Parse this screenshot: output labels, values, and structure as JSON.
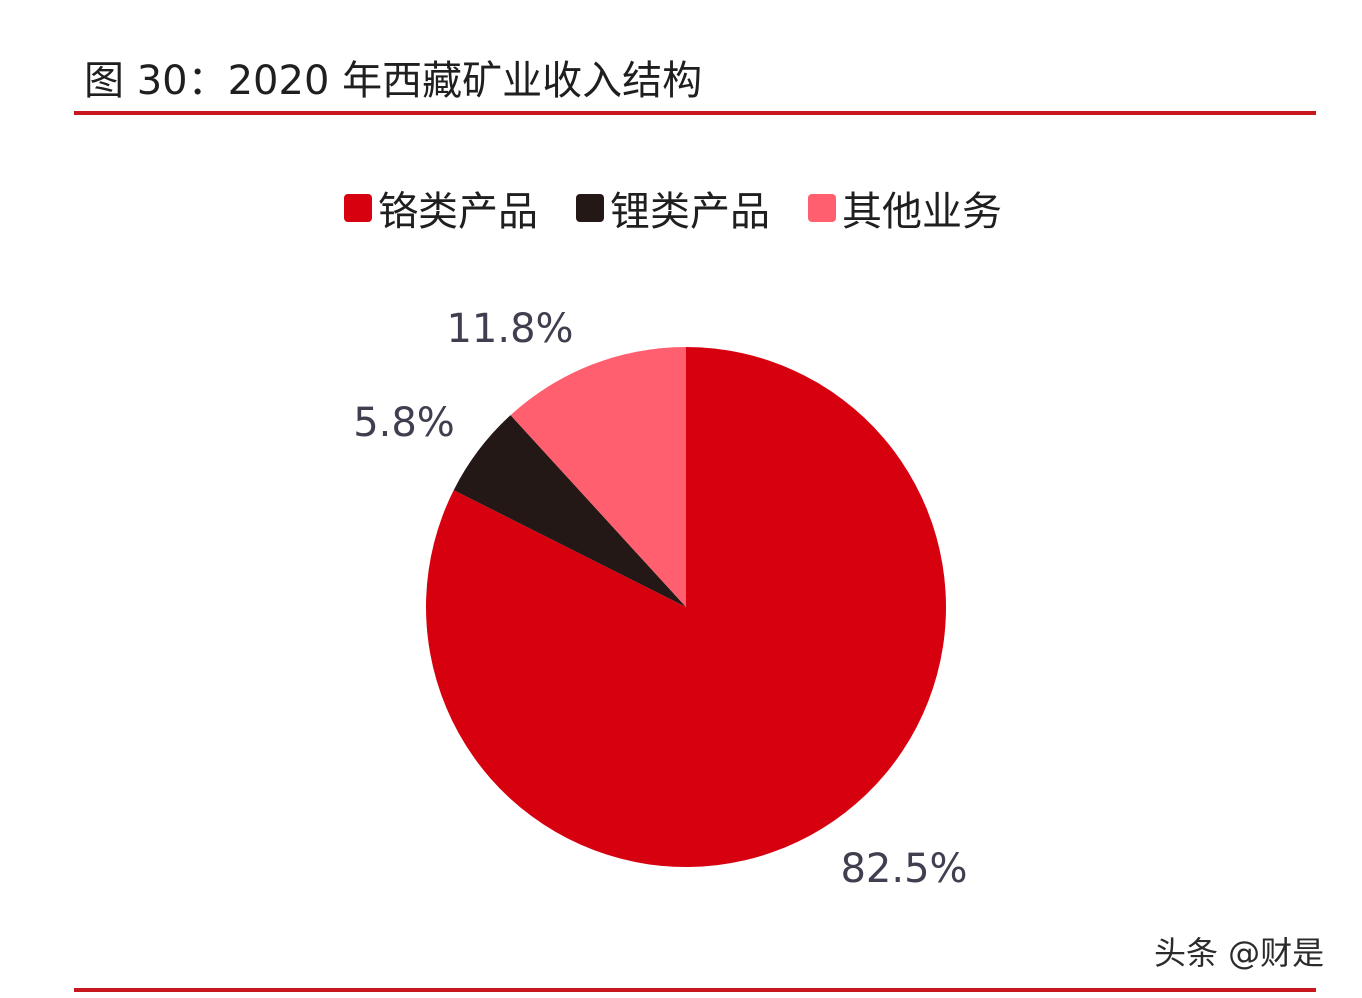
{
  "header": {
    "figure_title": "图 30：2020 年西藏矿业收入结构"
  },
  "colors": {
    "rule": "#c8171e",
    "label_text": "#3f3f4f"
  },
  "chart_data": {
    "type": "pie",
    "title": "",
    "legend_position": "top",
    "slices": [
      {
        "label": "铬类产品",
        "value": 82.5,
        "display": "82.5%",
        "color": "#d7000f"
      },
      {
        "label": "锂类产品",
        "value": 5.8,
        "display": "5.8%",
        "color": "#231815"
      },
      {
        "label": "其他业务",
        "value": 11.8,
        "display": "11.8%",
        "color": "#ff5f6e"
      }
    ]
  },
  "watermark": {
    "text": "头条 @财是"
  }
}
